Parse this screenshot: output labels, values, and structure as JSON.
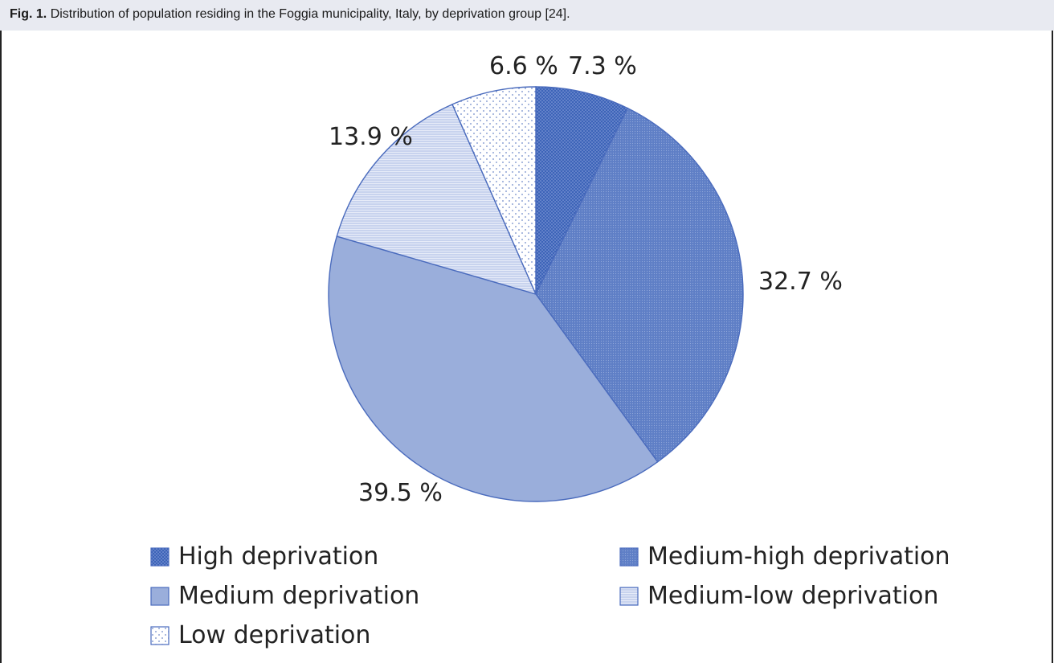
{
  "caption": {
    "label": "Fig. 1.",
    "text": "Distribution of population residing in the Foggia municipality, Italy, by deprivation group [24]."
  },
  "chart_data": {
    "type": "pie",
    "categories": [
      "High deprivation",
      "Medium-high deprivation",
      "Medium deprivation",
      "Medium-low deprivation",
      "Low deprivation"
    ],
    "values": [
      7.3,
      32.7,
      39.5,
      13.9,
      6.6
    ],
    "data_labels": [
      "7.3 %",
      "32.7 %",
      "39.5 %",
      "13.9 %",
      "6.6 %"
    ],
    "colors": [
      "#3d64b8",
      "#5f7fc6",
      "#9aaedb",
      "#c8d3ee",
      "#ffffff"
    ],
    "patterns": [
      "dense-dots",
      "fine-dots",
      "none",
      "horizontal-lines",
      "sparse-dots"
    ],
    "start": "12 o'clock",
    "direction": "clockwise",
    "legend_position": "bottom",
    "legend_columns": 2
  }
}
